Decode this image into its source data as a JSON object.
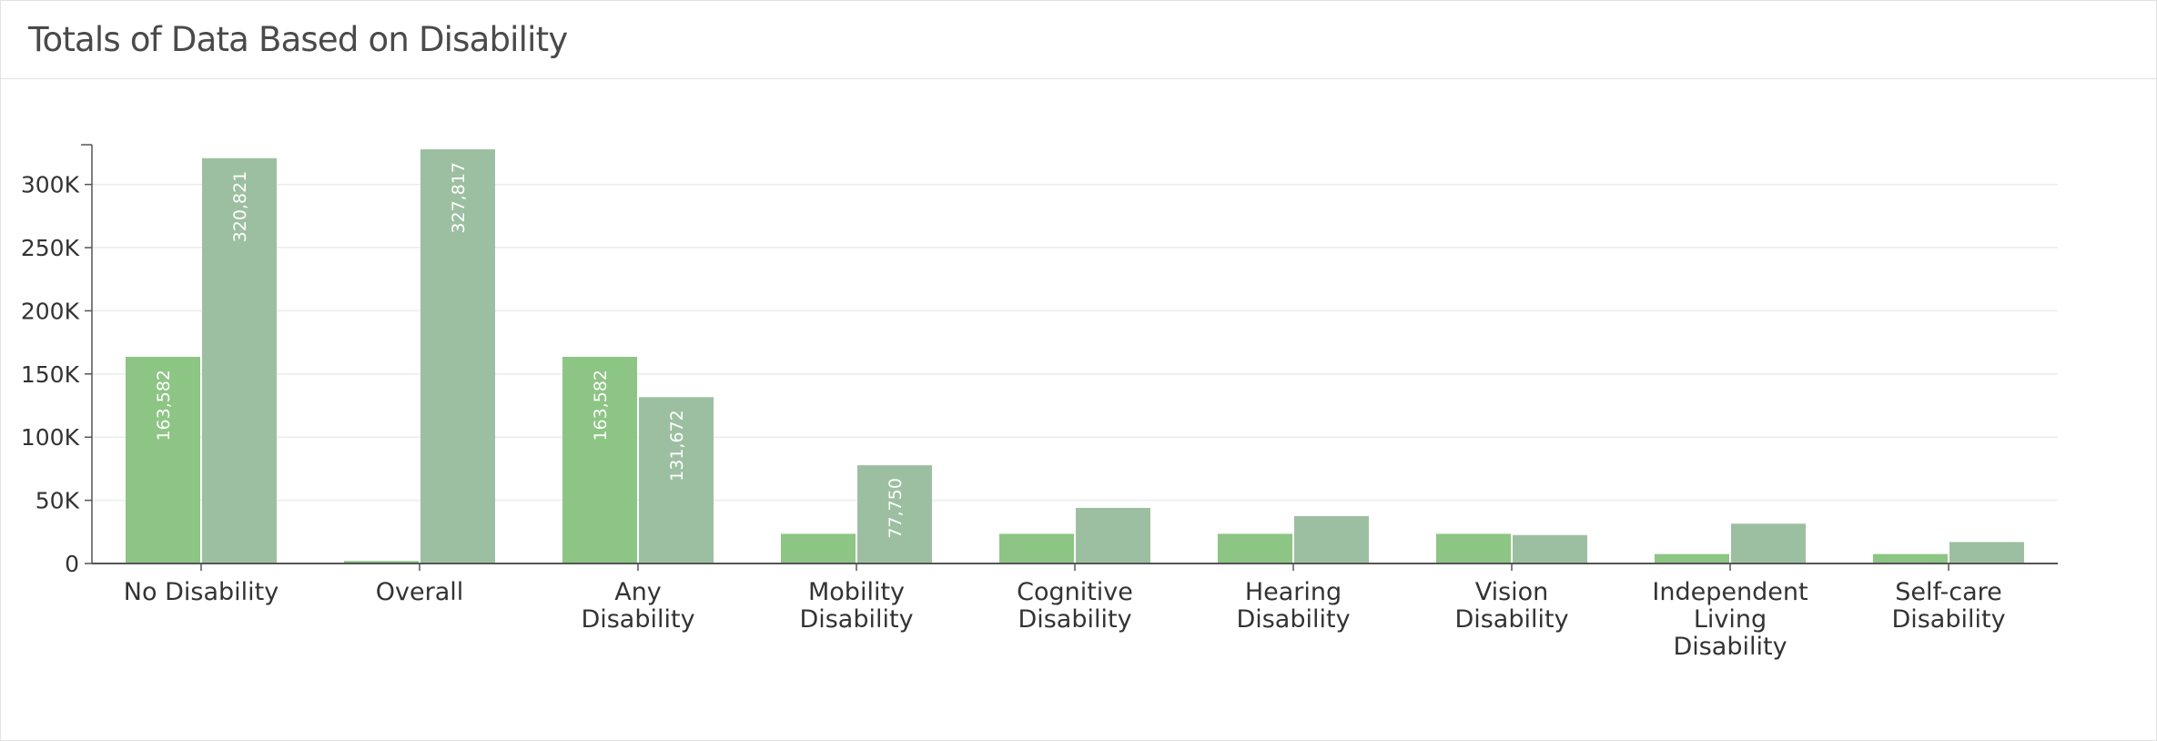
{
  "header": {
    "title": "Totals of Data Based on Disability"
  },
  "colors": {
    "series1": "#8dc584",
    "series2": "#9dbfa1",
    "grid": "#ececec",
    "axis": "#555555"
  },
  "chart_data": {
    "type": "bar",
    "categories": [
      [
        "No Disability"
      ],
      [
        "Overall"
      ],
      [
        "Any",
        "Disability"
      ],
      [
        "Mobility",
        "Disability"
      ],
      [
        "Cognitive",
        "Disability"
      ],
      [
        "Hearing",
        "Disability"
      ],
      [
        "Vision",
        "Disability"
      ],
      [
        "Independent",
        "Living",
        "Disability"
      ],
      [
        "Self-care",
        "Disability"
      ]
    ],
    "series": [
      {
        "values": [
          163582,
          2000,
          163582,
          23500,
          23500,
          23500,
          23500,
          7500,
          7500
        ],
        "labels": [
          "163,582",
          "",
          "163,582",
          "",
          "",
          "",
          "",
          "",
          ""
        ]
      },
      {
        "values": [
          320821,
          327817,
          131672,
          77750,
          44000,
          37500,
          22500,
          31500,
          17000
        ],
        "labels": [
          "320,821",
          "327,817",
          "131,672",
          "77,750",
          "",
          "",
          "",
          "",
          ""
        ]
      }
    ],
    "yticks": [
      0,
      50000,
      100000,
      150000,
      200000,
      250000,
      300000
    ],
    "ytick_labels": [
      "0",
      "50K",
      "100K",
      "150K",
      "200K",
      "250K",
      "300K"
    ],
    "ylim": [
      0,
      330000
    ],
    "grid": true,
    "legend": "none"
  }
}
